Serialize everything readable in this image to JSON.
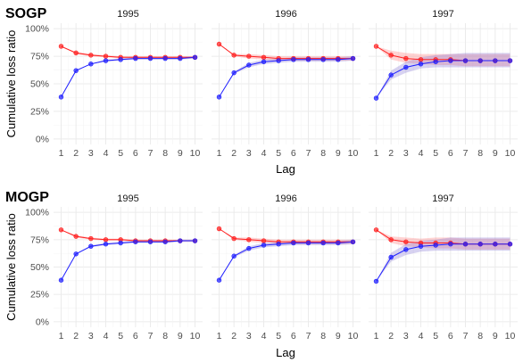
{
  "colors": {
    "observed": "#ff2020",
    "predicted": "#2020ff",
    "observed_band": "#ff8080",
    "predicted_band": "#8c7fd8",
    "grid": "#ebebeb"
  },
  "chart_data": [
    {
      "type": "line",
      "title": "SOGP",
      "xlabel": "Lag",
      "ylabel": "Cumulative loss ratio",
      "x": [
        1,
        2,
        3,
        4,
        5,
        6,
        7,
        8,
        9,
        10
      ],
      "ylim": [
        0,
        1.0
      ],
      "yticks": [
        0,
        0.25,
        0.5,
        0.75,
        1.0
      ],
      "ytick_labels": [
        "0%",
        "25%",
        "50%",
        "75%",
        "100%"
      ],
      "grid": true,
      "legend": "none",
      "panels": [
        {
          "strip": "1995",
          "series": [
            {
              "role": "observed",
              "values": [
                0.84,
                0.78,
                0.76,
                0.75,
                0.74,
                0.74,
                0.74,
                0.74,
                0.74,
                0.74
              ],
              "band_lower": [
                0.84,
                0.77,
                0.75,
                0.74,
                0.73,
                0.73,
                0.73,
                0.73,
                0.73,
                0.73
              ],
              "band_upper": [
                0.84,
                0.79,
                0.77,
                0.76,
                0.75,
                0.75,
                0.75,
                0.75,
                0.75,
                0.75
              ]
            },
            {
              "role": "predicted",
              "values": [
                0.38,
                0.62,
                0.68,
                0.71,
                0.72,
                0.73,
                0.73,
                0.73,
                0.73,
                0.74
              ],
              "band_lower": [
                0.38,
                0.62,
                0.68,
                0.7,
                0.71,
                0.72,
                0.72,
                0.72,
                0.72,
                0.73
              ],
              "band_upper": [
                0.38,
                0.62,
                0.68,
                0.72,
                0.73,
                0.74,
                0.74,
                0.74,
                0.74,
                0.75
              ]
            }
          ]
        },
        {
          "strip": "1996",
          "series": [
            {
              "role": "observed",
              "values": [
                0.86,
                0.76,
                0.75,
                0.74,
                0.73,
                0.73,
                0.73,
                0.73,
                0.73,
                0.73
              ],
              "band_lower": [
                0.86,
                0.75,
                0.73,
                0.72,
                0.71,
                0.71,
                0.71,
                0.71,
                0.71,
                0.71
              ],
              "band_upper": [
                0.86,
                0.77,
                0.77,
                0.76,
                0.75,
                0.75,
                0.75,
                0.75,
                0.75,
                0.75
              ]
            },
            {
              "role": "predicted",
              "values": [
                0.38,
                0.6,
                0.67,
                0.7,
                0.71,
                0.72,
                0.72,
                0.72,
                0.72,
                0.73
              ],
              "band_lower": [
                0.38,
                0.59,
                0.65,
                0.68,
                0.69,
                0.7,
                0.7,
                0.7,
                0.7,
                0.71
              ],
              "band_upper": [
                0.38,
                0.61,
                0.69,
                0.72,
                0.73,
                0.74,
                0.74,
                0.74,
                0.74,
                0.75
              ]
            }
          ]
        },
        {
          "strip": "1997",
          "series": [
            {
              "role": "observed",
              "values": [
                0.84,
                0.76,
                0.73,
                0.72,
                0.72,
                0.72,
                0.71,
                0.71,
                0.71,
                0.71
              ],
              "band_lower": [
                0.84,
                0.72,
                0.69,
                0.68,
                0.67,
                0.67,
                0.66,
                0.66,
                0.66,
                0.66
              ],
              "band_upper": [
                0.84,
                0.8,
                0.78,
                0.77,
                0.77,
                0.77,
                0.77,
                0.77,
                0.77,
                0.77
              ]
            },
            {
              "role": "predicted",
              "values": [
                0.37,
                0.58,
                0.65,
                0.68,
                0.7,
                0.71,
                0.71,
                0.71,
                0.71,
                0.71
              ],
              "band_lower": [
                0.37,
                0.54,
                0.6,
                0.64,
                0.65,
                0.65,
                0.65,
                0.65,
                0.65,
                0.65
              ],
              "band_upper": [
                0.37,
                0.62,
                0.7,
                0.74,
                0.76,
                0.77,
                0.78,
                0.78,
                0.78,
                0.78
              ]
            }
          ]
        }
      ]
    },
    {
      "type": "line",
      "title": "MOGP",
      "xlabel": "Lag",
      "ylabel": "Cumulative loss ratio",
      "x": [
        1,
        2,
        3,
        4,
        5,
        6,
        7,
        8,
        9,
        10
      ],
      "ylim": [
        0,
        1.0
      ],
      "yticks": [
        0,
        0.25,
        0.5,
        0.75,
        1.0
      ],
      "ytick_labels": [
        "0%",
        "25%",
        "50%",
        "75%",
        "100%"
      ],
      "grid": true,
      "legend": "none",
      "panels": [
        {
          "strip": "1995",
          "series": [
            {
              "role": "observed",
              "values": [
                0.84,
                0.78,
                0.76,
                0.75,
                0.75,
                0.74,
                0.74,
                0.74,
                0.74,
                0.74
              ],
              "band_lower": [
                0.84,
                0.77,
                0.75,
                0.74,
                0.74,
                0.73,
                0.73,
                0.73,
                0.73,
                0.73
              ],
              "band_upper": [
                0.84,
                0.79,
                0.77,
                0.76,
                0.76,
                0.75,
                0.75,
                0.75,
                0.75,
                0.75
              ]
            },
            {
              "role": "predicted",
              "values": [
                0.38,
                0.62,
                0.69,
                0.71,
                0.72,
                0.73,
                0.73,
                0.73,
                0.74,
                0.74
              ],
              "band_lower": [
                0.38,
                0.62,
                0.68,
                0.7,
                0.71,
                0.72,
                0.72,
                0.72,
                0.73,
                0.73
              ],
              "band_upper": [
                0.38,
                0.62,
                0.7,
                0.72,
                0.73,
                0.74,
                0.74,
                0.74,
                0.75,
                0.75
              ]
            }
          ]
        },
        {
          "strip": "1996",
          "series": [
            {
              "role": "observed",
              "values": [
                0.85,
                0.76,
                0.75,
                0.74,
                0.73,
                0.73,
                0.73,
                0.73,
                0.73,
                0.73
              ],
              "band_lower": [
                0.85,
                0.75,
                0.73,
                0.72,
                0.71,
                0.71,
                0.71,
                0.71,
                0.71,
                0.71
              ],
              "band_upper": [
                0.85,
                0.77,
                0.77,
                0.76,
                0.75,
                0.75,
                0.75,
                0.75,
                0.75,
                0.75
              ]
            },
            {
              "role": "predicted",
              "values": [
                0.38,
                0.6,
                0.67,
                0.7,
                0.71,
                0.72,
                0.72,
                0.72,
                0.72,
                0.73
              ],
              "band_lower": [
                0.38,
                0.59,
                0.65,
                0.68,
                0.69,
                0.7,
                0.7,
                0.7,
                0.7,
                0.71
              ],
              "band_upper": [
                0.38,
                0.61,
                0.69,
                0.72,
                0.73,
                0.74,
                0.74,
                0.74,
                0.74,
                0.75
              ]
            }
          ]
        },
        {
          "strip": "1997",
          "series": [
            {
              "role": "observed",
              "values": [
                0.84,
                0.75,
                0.73,
                0.72,
                0.72,
                0.72,
                0.71,
                0.71,
                0.71,
                0.71
              ],
              "band_lower": [
                0.84,
                0.72,
                0.69,
                0.68,
                0.67,
                0.67,
                0.66,
                0.66,
                0.66,
                0.66
              ],
              "band_upper": [
                0.84,
                0.78,
                0.77,
                0.76,
                0.77,
                0.77,
                0.76,
                0.76,
                0.76,
                0.76
              ]
            },
            {
              "role": "predicted",
              "values": [
                0.37,
                0.59,
                0.66,
                0.69,
                0.7,
                0.71,
                0.71,
                0.71,
                0.71,
                0.71
              ],
              "band_lower": [
                0.37,
                0.55,
                0.61,
                0.64,
                0.65,
                0.65,
                0.65,
                0.65,
                0.65,
                0.65
              ],
              "band_upper": [
                0.37,
                0.63,
                0.71,
                0.74,
                0.75,
                0.77,
                0.77,
                0.77,
                0.77,
                0.77
              ]
            }
          ]
        }
      ]
    }
  ]
}
